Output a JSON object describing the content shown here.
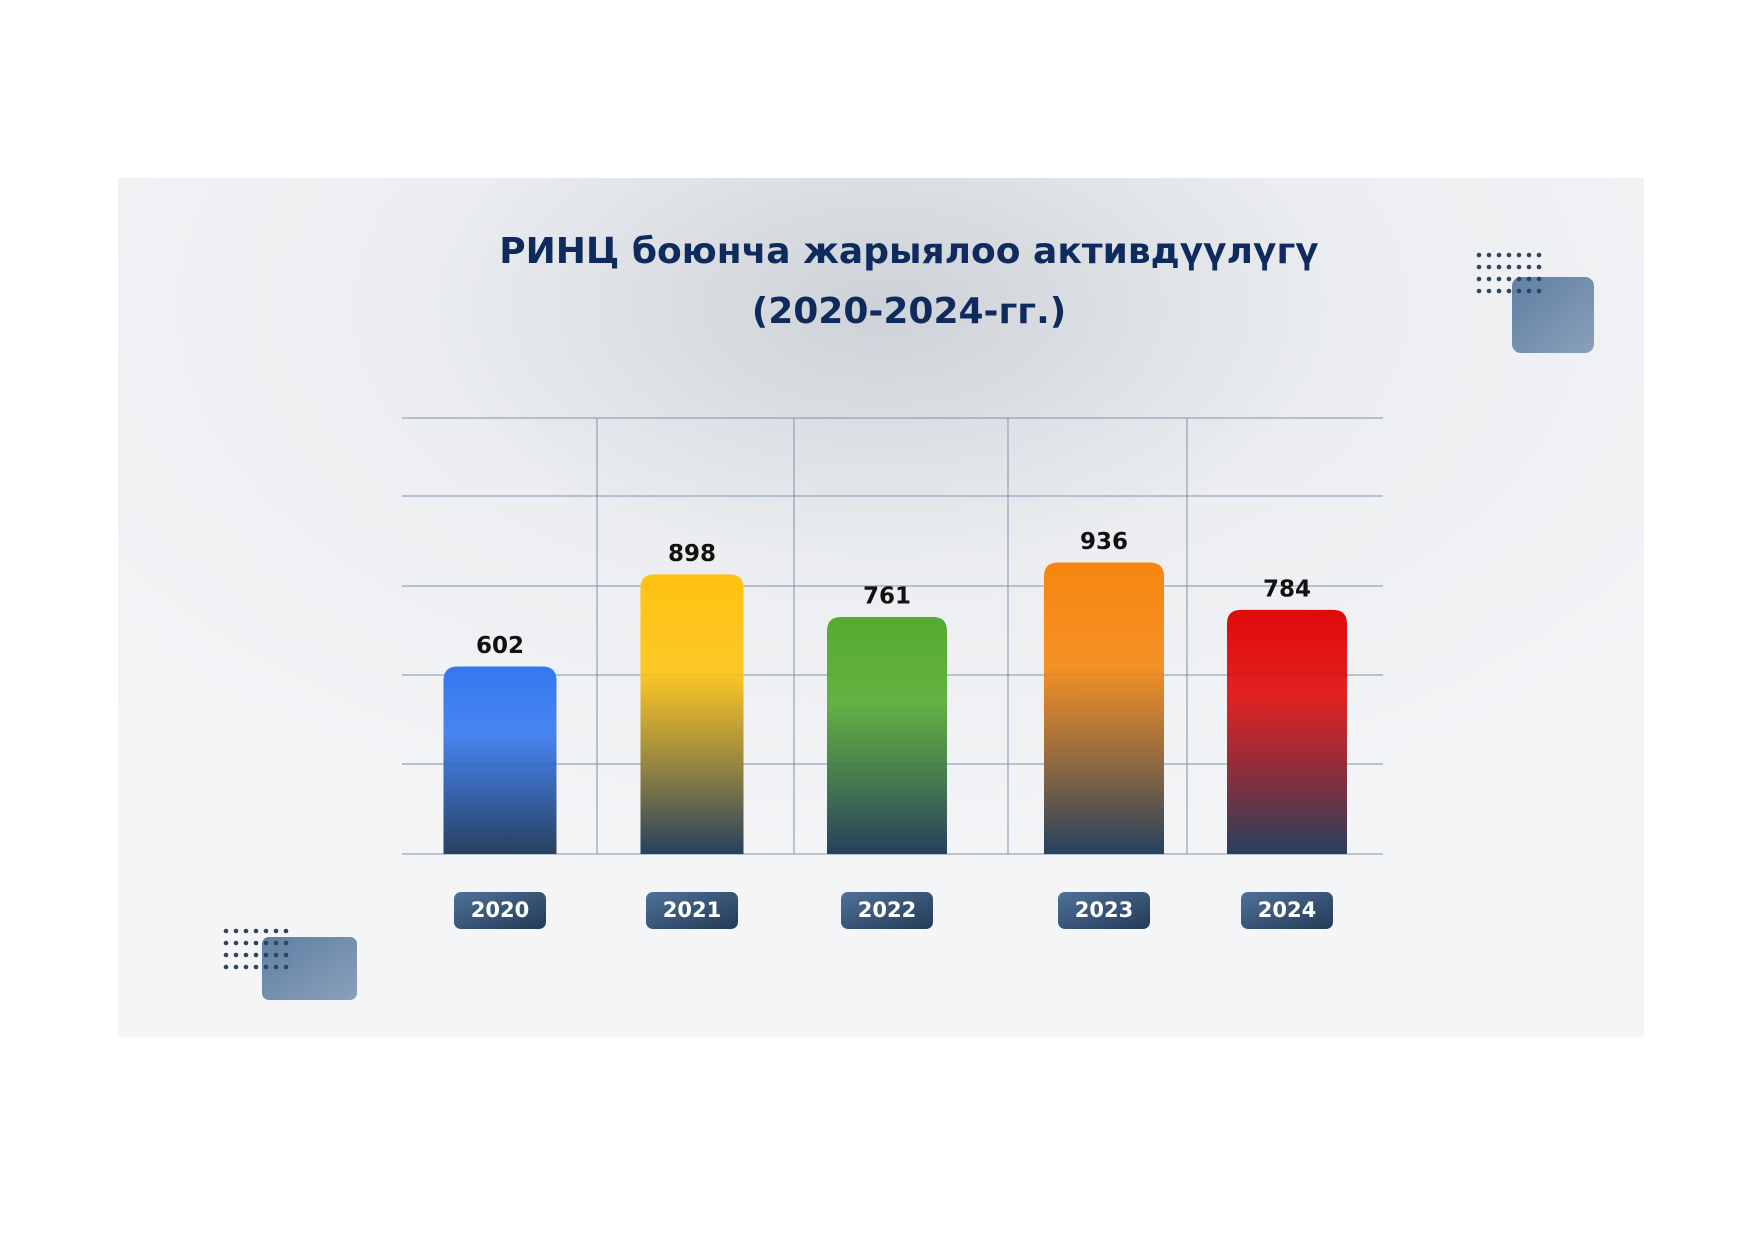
{
  "chart_data": {
    "type": "bar",
    "title": "РИНЦ боюнча жарыялоо активдүүлүгү",
    "subtitle": "(2020-2024-гг.)",
    "categories": [
      "2020",
      "2021",
      "2022",
      "2023",
      "2024"
    ],
    "values": [
      602,
      898,
      761,
      936,
      784
    ],
    "colors": [
      "#3478f0",
      "#fec20f",
      "#55ab2f",
      "#f6860f",
      "#e00a0a"
    ],
    "ylim": [
      0,
      1400
    ]
  }
}
